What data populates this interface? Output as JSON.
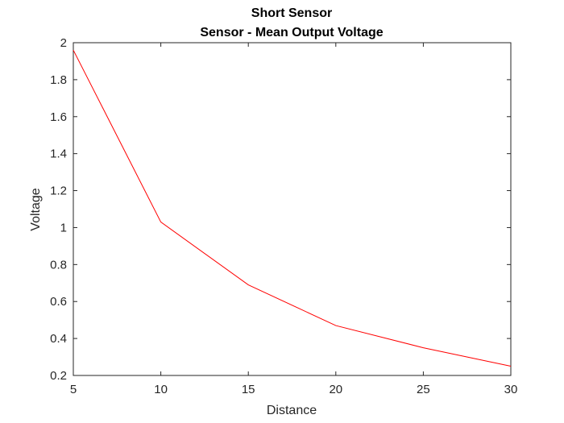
{
  "chart_data": {
    "type": "line",
    "title": "Short Sensor",
    "subtitle": "Sensor - Mean Output Voltage",
    "xlabel": "Distance",
    "ylabel": "Voltage",
    "xlim": [
      5,
      30
    ],
    "ylim": [
      0.2,
      2
    ],
    "xticks": [
      5,
      10,
      15,
      20,
      25,
      30
    ],
    "yticks": [
      0.2,
      0.4,
      0.6,
      0.8,
      1,
      1.2,
      1.4,
      1.6,
      1.8,
      2
    ],
    "grid": false,
    "series": [
      {
        "color": "#ff0000",
        "x": [
          5,
          10,
          15,
          20,
          25,
          30
        ],
        "y": [
          1.96,
          1.03,
          0.69,
          0.47,
          0.35,
          0.25
        ]
      }
    ]
  }
}
